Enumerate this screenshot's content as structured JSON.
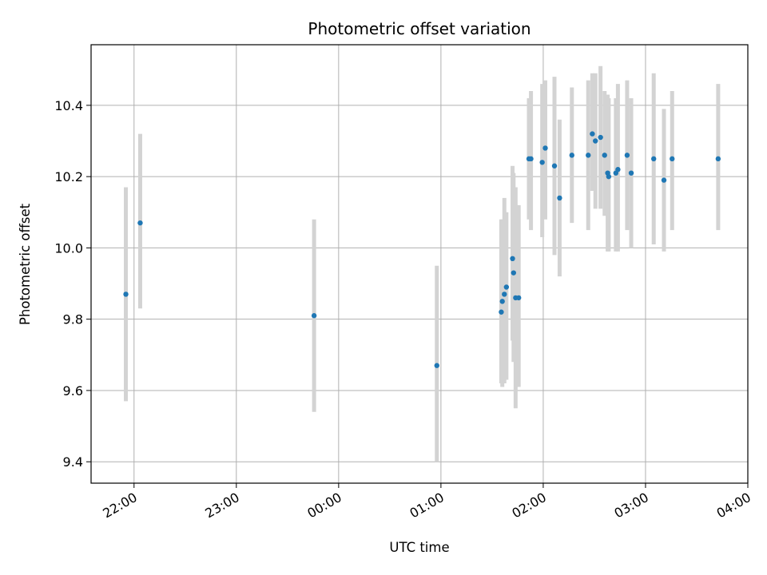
{
  "chart_data": {
    "type": "scatter",
    "title": "Photometric offset variation",
    "xlabel": "UTC time",
    "ylabel": "Photometric offset",
    "grid": true,
    "xlim_hours": [
      21.58,
      28.0
    ],
    "ylim": [
      9.34,
      10.57
    ],
    "x_ticks": [
      {
        "label": "22:00",
        "hours": 22.0
      },
      {
        "label": "23:00",
        "hours": 23.0
      },
      {
        "label": "00:00",
        "hours": 24.0
      },
      {
        "label": "01:00",
        "hours": 25.0
      },
      {
        "label": "02:00",
        "hours": 26.0
      },
      {
        "label": "03:00",
        "hours": 27.0
      },
      {
        "label": "04:00",
        "hours": 28.0
      }
    ],
    "y_ticks": [
      {
        "label": "9.4",
        "value": 9.4
      },
      {
        "label": "9.6",
        "value": 9.6
      },
      {
        "label": "9.8",
        "value": 9.8
      },
      {
        "label": "10.0",
        "value": 10.0
      },
      {
        "label": "10.2",
        "value": 10.2
      },
      {
        "label": "10.4",
        "value": 10.4
      }
    ],
    "series": [
      {
        "name": "offset",
        "marker_color": "#1f77b4",
        "errorbar_color": "#d3d3d3",
        "points": [
          {
            "t": 21.92,
            "y": 9.87,
            "lo": 9.57,
            "hi": 10.17
          },
          {
            "t": 22.06,
            "y": 10.07,
            "lo": 9.83,
            "hi": 10.32
          },
          {
            "t": 23.76,
            "y": 9.81,
            "lo": 9.54,
            "hi": 10.08
          },
          {
            "t": 24.96,
            "y": 9.67,
            "lo": 9.4,
            "hi": 9.95
          },
          {
            "t": 25.59,
            "y": 9.82,
            "lo": 9.62,
            "hi": 10.08
          },
          {
            "t": 25.6,
            "y": 9.85,
            "lo": 9.61,
            "hi": 10.08
          },
          {
            "t": 25.62,
            "y": 9.87,
            "lo": 9.62,
            "hi": 10.14
          },
          {
            "t": 25.64,
            "y": 9.89,
            "lo": 9.63,
            "hi": 10.1
          },
          {
            "t": 25.7,
            "y": 9.97,
            "lo": 9.74,
            "hi": 10.23
          },
          {
            "t": 25.71,
            "y": 9.93,
            "lo": 9.68,
            "hi": 10.21
          },
          {
            "t": 25.73,
            "y": 9.86,
            "lo": 9.55,
            "hi": 10.17
          },
          {
            "t": 25.76,
            "y": 9.86,
            "lo": 9.61,
            "hi": 10.12
          },
          {
            "t": 25.86,
            "y": 10.25,
            "lo": 10.08,
            "hi": 10.42
          },
          {
            "t": 25.88,
            "y": 10.25,
            "lo": 10.05,
            "hi": 10.44
          },
          {
            "t": 25.99,
            "y": 10.24,
            "lo": 10.03,
            "hi": 10.46
          },
          {
            "t": 26.02,
            "y": 10.28,
            "lo": 10.08,
            "hi": 10.47
          },
          {
            "t": 26.11,
            "y": 10.23,
            "lo": 9.98,
            "hi": 10.48
          },
          {
            "t": 26.16,
            "y": 10.14,
            "lo": 9.92,
            "hi": 10.36
          },
          {
            "t": 26.28,
            "y": 10.26,
            "lo": 10.07,
            "hi": 10.45
          },
          {
            "t": 26.44,
            "y": 10.26,
            "lo": 10.05,
            "hi": 10.47
          },
          {
            "t": 26.48,
            "y": 10.32,
            "lo": 10.16,
            "hi": 10.49
          },
          {
            "t": 26.51,
            "y": 10.3,
            "lo": 10.11,
            "hi": 10.49
          },
          {
            "t": 26.56,
            "y": 10.31,
            "lo": 10.11,
            "hi": 10.51
          },
          {
            "t": 26.6,
            "y": 10.26,
            "lo": 10.09,
            "hi": 10.44
          },
          {
            "t": 26.63,
            "y": 10.21,
            "lo": 9.99,
            "hi": 10.43
          },
          {
            "t": 26.64,
            "y": 10.2,
            "lo": 9.99,
            "hi": 10.42
          },
          {
            "t": 26.71,
            "y": 10.21,
            "lo": 9.99,
            "hi": 10.42
          },
          {
            "t": 26.73,
            "y": 10.22,
            "lo": 9.99,
            "hi": 10.46
          },
          {
            "t": 26.82,
            "y": 10.26,
            "lo": 10.05,
            "hi": 10.47
          },
          {
            "t": 26.86,
            "y": 10.21,
            "lo": 10.0,
            "hi": 10.42
          },
          {
            "t": 27.08,
            "y": 10.25,
            "lo": 10.01,
            "hi": 10.49
          },
          {
            "t": 27.18,
            "y": 10.19,
            "lo": 9.99,
            "hi": 10.39
          },
          {
            "t": 27.26,
            "y": 10.25,
            "lo": 10.05,
            "hi": 10.44
          },
          {
            "t": 27.71,
            "y": 10.25,
            "lo": 10.05,
            "hi": 10.46
          }
        ]
      }
    ]
  }
}
